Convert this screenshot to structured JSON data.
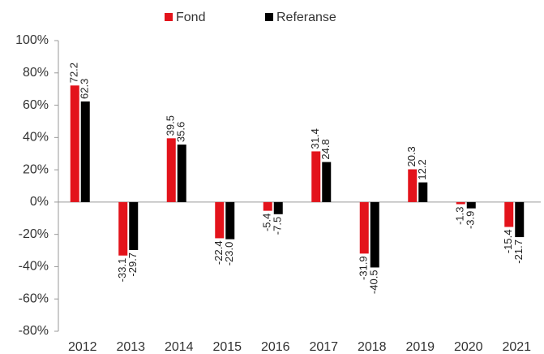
{
  "chart_data": {
    "type": "bar",
    "categories": [
      "2012",
      "2013",
      "2014",
      "2015",
      "2016",
      "2017",
      "2018",
      "2019",
      "2020",
      "2021"
    ],
    "series": [
      {
        "name": "Fond",
        "color": "#e3131b",
        "values": [
          72.2,
          -33.1,
          39.5,
          -22.4,
          -5.4,
          31.4,
          -31.9,
          20.3,
          -1.3,
          -15.4
        ],
        "value_labels": [
          "72.2",
          "-33.1",
          "39.5",
          "-22.4",
          "-5.4",
          "31.4",
          "-31.9",
          "20.3",
          "-1.3",
          "-15.4"
        ]
      },
      {
        "name": "Referanse",
        "color": "#000000",
        "values": [
          62.3,
          -29.7,
          35.6,
          -23.0,
          -7.5,
          24.8,
          -40.5,
          12.2,
          -3.9,
          -21.7
        ],
        "value_labels": [
          "62.3",
          "-29.7",
          "35.6",
          "-23.0",
          "-7.5",
          "24.8",
          "-40.5",
          "12.2",
          "-3.9",
          "-21.7"
        ]
      }
    ],
    "ylim": [
      -80,
      100
    ],
    "yticks": [
      {
        "value": -80,
        "label": "-80%"
      },
      {
        "value": -60,
        "label": "-60%"
      },
      {
        "value": -40,
        "label": "-40%"
      },
      {
        "value": -20,
        "label": "-20%"
      },
      {
        "value": 0,
        "label": "0%"
      },
      {
        "value": 20,
        "label": "20%"
      },
      {
        "value": 40,
        "label": "40%"
      },
      {
        "value": 60,
        "label": "60%"
      },
      {
        "value": 80,
        "label": "80%"
      },
      {
        "value": 100,
        "label": "100%"
      }
    ],
    "grid": false,
    "legend": "top"
  }
}
